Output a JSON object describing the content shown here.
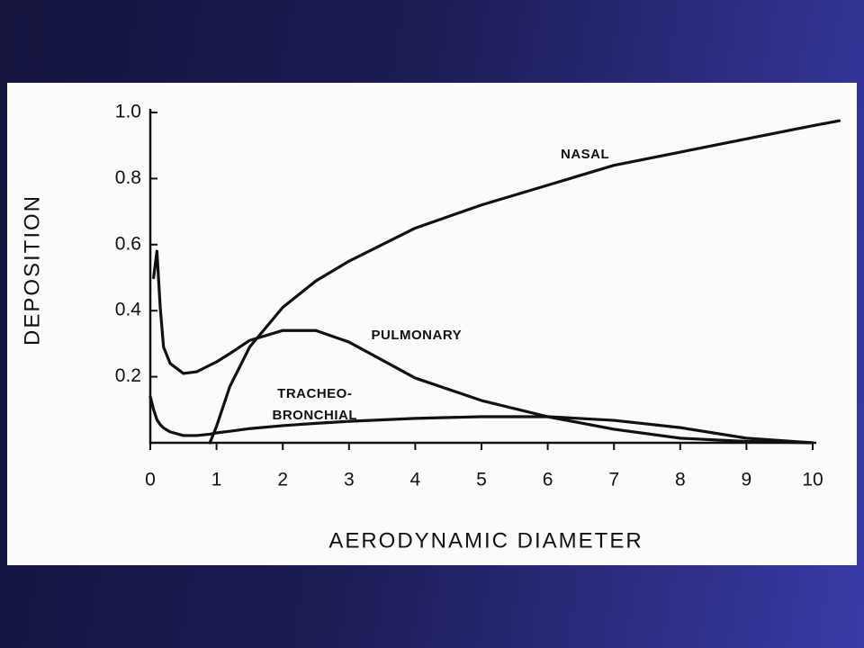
{
  "chart_data": {
    "type": "line",
    "xlabel": "AERODYNAMIC DIAMETER",
    "ylabel": "DEPOSITION",
    "x": [
      0,
      0.05,
      0.1,
      0.15,
      0.2,
      0.3,
      0.5,
      0.7,
      0.9,
      1,
      1.2,
      1.5,
      2,
      2.5,
      3,
      4,
      5,
      6,
      7,
      8,
      9,
      10,
      10.4
    ],
    "series": [
      {
        "name": "NASAL",
        "color": "#111111",
        "values": [
          null,
          null,
          null,
          null,
          null,
          null,
          null,
          null,
          0,
          0.05,
          0.17,
          0.29,
          0.41,
          0.49,
          0.55,
          0.65,
          0.72,
          0.78,
          0.84,
          0.88,
          0.92,
          0.96,
          0.975
        ]
      },
      {
        "name": "PULMONARY",
        "color": "#111111",
        "values": [
          null,
          0.5,
          0.58,
          0.41,
          0.29,
          0.24,
          0.21,
          0.215,
          0.235,
          0.245,
          0.27,
          0.31,
          0.34,
          0.34,
          0.305,
          0.196,
          0.128,
          0.079,
          0.041,
          0.014,
          0.004,
          0,
          null
        ]
      },
      {
        "name": "TRACHEO-\nBRONCHIAL",
        "color": "#111111",
        "values": [
          0.14,
          0.1,
          0.07,
          0.055,
          0.045,
          0.033,
          0.022,
          0.022,
          0.026,
          0.03,
          0.035,
          0.043,
          0.052,
          0.059,
          0.065,
          0.074,
          0.079,
          0.079,
          0.068,
          0.046,
          0.014,
          0,
          null
        ]
      }
    ],
    "xlim": [
      0,
      10
    ],
    "ylim": [
      0,
      1
    ],
    "xticks": [
      0,
      1,
      2,
      3,
      4,
      5,
      6,
      7,
      8,
      9,
      10
    ],
    "yticks": [
      0.2,
      0.4,
      0.6,
      0.8,
      {
        "value": 1,
        "label": "1.0"
      }
    ],
    "grid": false
  }
}
